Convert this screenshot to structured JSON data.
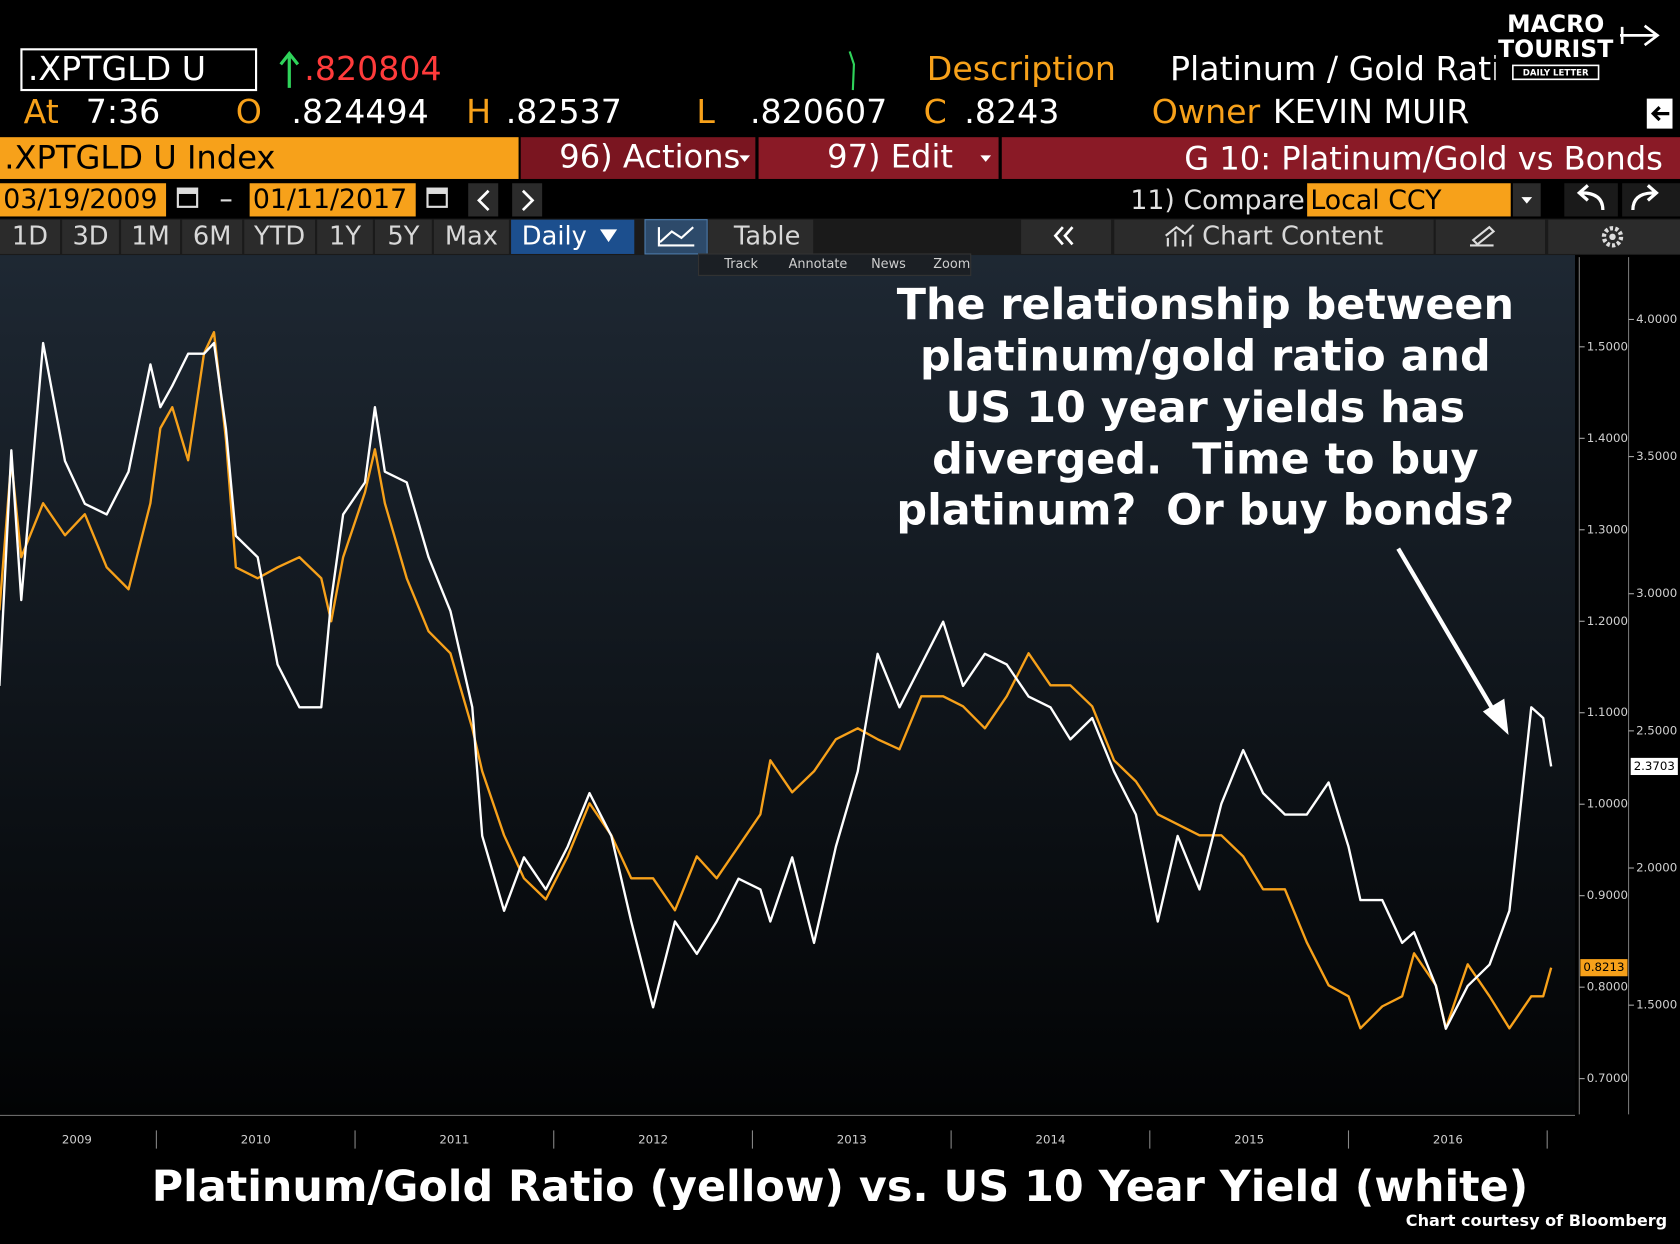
{
  "terminal": {
    "ticker": ".XPTGLD U",
    "last": ".820804",
    "description_label": "Description",
    "description": "Platinum / Gold Ratio",
    "time_label": "At",
    "time": "7:36",
    "open_label": "O",
    "open": ".824494",
    "high_label": "H",
    "high": ".82537",
    "low_label": "L",
    "low": ".820607",
    "close_label": "C",
    "close": ".8243",
    "owner_label": "Owner",
    "owner": "KEVIN MUIR",
    "security": ".XPTGLD U Index",
    "actions": "96) Actions",
    "edit": "97) Edit",
    "graph_title": "G 10: Platinum/Gold vs Bonds",
    "start_date": "03/19/2009",
    "end_date": "01/11/2017",
    "compare": "11) Compare",
    "currency": "Local CCY",
    "ranges": [
      "1D",
      "3D",
      "1M",
      "6M",
      "YTD",
      "1Y",
      "5Y",
      "Max"
    ],
    "frequency": "Daily",
    "table": "Table",
    "chart_content": "Chart Content",
    "tools": [
      "Track",
      "Annotate",
      "News",
      "Zoom"
    ]
  },
  "logo": {
    "line1": "MACRO",
    "line2": "TOURIST",
    "tagline": "DAILY LETTER"
  },
  "chart_data": {
    "type": "line",
    "annotation": [
      "The relationship between",
      "platinum/gold ratio and",
      "US 10 year yields has",
      "diverged.  Time to buy",
      "platinum?  Or buy bonds?"
    ],
    "caption": "Platinum/Gold Ratio (yellow) vs. US 10 Year Yield (white)",
    "credit": "Chart courtesy of Bloomberg",
    "x": [
      2009.21,
      2009.27,
      2009.32,
      2009.43,
      2009.54,
      2009.64,
      2009.75,
      2009.86,
      2009.97,
      2010.02,
      2010.08,
      2010.16,
      2010.24,
      2010.29,
      2010.35,
      2010.4,
      2010.51,
      2010.61,
      2010.72,
      2010.83,
      2010.88,
      2010.94,
      2011.05,
      2011.1,
      2011.15,
      2011.26,
      2011.37,
      2011.48,
      2011.59,
      2011.64,
      2011.75,
      2011.85,
      2011.96,
      2012.07,
      2012.18,
      2012.29,
      2012.39,
      2012.5,
      2012.61,
      2012.72,
      2012.82,
      2012.93,
      2013.04,
      2013.09,
      2013.2,
      2013.31,
      2013.42,
      2013.53,
      2013.63,
      2013.74,
      2013.85,
      2013.96,
      2014.06,
      2014.17,
      2014.28,
      2014.39,
      2014.5,
      2014.6,
      2014.71,
      2014.82,
      2014.93,
      2015.04,
      2015.14,
      2015.25,
      2015.36,
      2015.47,
      2015.57,
      2015.68,
      2015.79,
      2015.9,
      2016.0,
      2016.06,
      2016.17,
      2016.27,
      2016.33,
      2016.44,
      2016.49,
      2016.6,
      2016.71,
      2016.81,
      2016.92,
      2016.98,
      2017.02
    ],
    "xlim": [
      2009.213,
      2017.14
    ],
    "xticks": [
      {
        "value": 2009.6,
        "label": "2009"
      },
      {
        "value": 2010.5,
        "label": "2010"
      },
      {
        "value": 2011.5,
        "label": "2011"
      },
      {
        "value": 2012.5,
        "label": "2012"
      },
      {
        "value": 2013.5,
        "label": "2013"
      },
      {
        "value": 2014.5,
        "label": "2014"
      },
      {
        "value": 2015.5,
        "label": "2015"
      },
      {
        "value": 2016.5,
        "label": "2016"
      }
    ],
    "ylim": [
      0.661,
      1.598
    ],
    "yticks": [
      {
        "value": 0.7,
        "label": "0.7000"
      },
      {
        "value": 0.8,
        "label": "0.8000"
      },
      {
        "value": 0.9,
        "label": "0.9000"
      },
      {
        "value": 1.0,
        "label": "1.0000"
      },
      {
        "value": 1.1,
        "label": "1.1000"
      },
      {
        "value": 1.2,
        "label": "1.2000"
      },
      {
        "value": 1.3,
        "label": "1.3000"
      },
      {
        "value": 1.4,
        "label": "1.4000"
      },
      {
        "value": 1.5,
        "label": "1.5000"
      }
    ],
    "y2lim": [
      1.102,
      4.227
    ],
    "y2ticks": [
      {
        "value": 1.5,
        "label": "1.5000"
      },
      {
        "value": 2.0,
        "label": "2.0000"
      },
      {
        "value": 2.5,
        "label": "2.5000"
      },
      {
        "value": 3.0,
        "label": "3.0000"
      },
      {
        "value": 3.5,
        "label": "3.5000"
      },
      {
        "value": 4.0,
        "label": "4.0000"
      }
    ],
    "series": [
      {
        "color": "#f7a11a",
        "values": [
          1.212,
          1.376,
          1.27,
          1.329,
          1.294,
          1.317,
          1.259,
          1.235,
          1.329,
          1.411,
          1.434,
          1.376,
          1.493,
          1.516,
          1.399,
          1.259,
          1.247,
          1.259,
          1.27,
          1.247,
          1.2,
          1.27,
          1.341,
          1.388,
          1.329,
          1.247,
          1.189,
          1.165,
          1.083,
          1.036,
          0.966,
          0.919,
          0.896,
          0.943,
          1.001,
          0.966,
          0.919,
          0.919,
          0.884,
          0.943,
          0.919,
          0.954,
          0.989,
          1.048,
          1.013,
          1.036,
          1.071,
          1.083,
          1.071,
          1.06,
          1.118,
          1.118,
          1.107,
          1.083,
          1.118,
          1.165,
          1.13,
          1.13,
          1.107,
          1.048,
          1.025,
          0.989,
          0.978,
          0.966,
          0.966,
          0.943,
          0.907,
          0.907,
          0.849,
          0.802,
          0.79,
          0.755,
          0.779,
          0.79,
          0.837,
          0.802,
          0.755,
          0.825,
          0.79,
          0.755,
          0.79,
          0.79,
          0.8213
        ]
      },
      {
        "color": "#ffffff",
        "axis": "y2",
        "values": [
          2.664,
          3.523,
          2.977,
          3.914,
          3.484,
          3.328,
          3.289,
          3.445,
          3.836,
          3.68,
          3.758,
          3.875,
          3.875,
          3.914,
          3.602,
          3.211,
          3.133,
          2.742,
          2.586,
          2.586,
          2.977,
          3.289,
          3.406,
          3.68,
          3.445,
          3.406,
          3.133,
          2.937,
          2.586,
          2.117,
          1.844,
          2.039,
          1.922,
          2.078,
          2.273,
          2.117,
          1.805,
          1.492,
          1.805,
          1.687,
          1.805,
          1.961,
          1.922,
          1.805,
          2.039,
          1.727,
          2.078,
          2.352,
          2.781,
          2.586,
          2.742,
          2.898,
          2.664,
          2.781,
          2.742,
          2.625,
          2.586,
          2.469,
          2.547,
          2.352,
          2.195,
          1.805,
          2.117,
          1.922,
          2.234,
          2.43,
          2.273,
          2.195,
          2.195,
          2.312,
          2.078,
          1.883,
          1.883,
          1.727,
          1.766,
          1.57,
          1.414,
          1.57,
          1.648,
          1.844,
          2.586,
          2.547,
          2.3703
        ]
      }
    ]
  }
}
